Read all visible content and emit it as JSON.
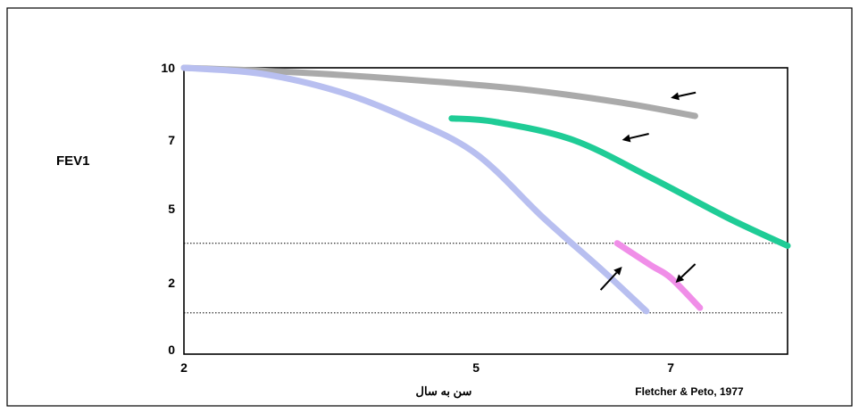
{
  "chart_data": {
    "type": "line",
    "title": "",
    "ylabel": "FEV1",
    "xlabel": "سن به سال",
    "citation": "Fletcher & Peto, 1977",
    "x_ticks": [
      {
        "value": 2,
        "label": "2"
      },
      {
        "value": 5,
        "label": "5"
      },
      {
        "value": 7,
        "label": "7"
      }
    ],
    "y_ticks": [
      {
        "value": 10,
        "label": "10"
      },
      {
        "value": 7,
        "label": "7"
      },
      {
        "value": 5,
        "label": "5"
      },
      {
        "value": 2,
        "label": "2"
      },
      {
        "value": 0,
        "label": "0"
      }
    ],
    "xlim": [
      2,
      8.2
    ],
    "grid": false,
    "thresholds": [
      3.6,
      1.1
    ],
    "series": [
      {
        "color": "#aaaaaa",
        "width": 7,
        "points": [
          [
            2.0,
            10.0
          ],
          [
            3.2,
            9.8
          ],
          [
            4.5,
            9.45
          ],
          [
            5.5,
            9.1
          ],
          [
            6.5,
            8.55
          ],
          [
            7.25,
            8.0
          ]
        ]
      },
      {
        "color": "#b8bff0",
        "width": 7,
        "points": [
          [
            2.0,
            10.0
          ],
          [
            2.8,
            9.75
          ],
          [
            3.6,
            9.0
          ],
          [
            4.3,
            7.9
          ],
          [
            5.0,
            6.6
          ],
          [
            5.7,
            4.6
          ],
          [
            6.3,
            2.5
          ],
          [
            6.75,
            1.15
          ]
        ]
      },
      {
        "color": "#1fcc96",
        "width": 7,
        "points": [
          [
            4.75,
            7.9
          ],
          [
            5.2,
            7.75
          ],
          [
            6.0,
            7.0
          ],
          [
            6.8,
            5.9
          ],
          [
            7.6,
            4.6
          ],
          [
            8.2,
            3.5
          ]
        ]
      },
      {
        "color": "#f08ee8",
        "width": 7,
        "points": [
          [
            6.45,
            3.6
          ],
          [
            6.8,
            2.7
          ],
          [
            7.0,
            2.2
          ],
          [
            7.3,
            1.25
          ]
        ]
      }
    ],
    "arrows": [
      {
        "to": [
          7.0,
          8.75
        ],
        "target": "grey curve"
      },
      {
        "to": [
          6.5,
          7.0
        ],
        "target": "green curve"
      },
      {
        "to": [
          6.5,
          2.65
        ],
        "target": "blue curve"
      },
      {
        "to": [
          7.05,
          2.0
        ],
        "target": "pink curve"
      }
    ]
  }
}
